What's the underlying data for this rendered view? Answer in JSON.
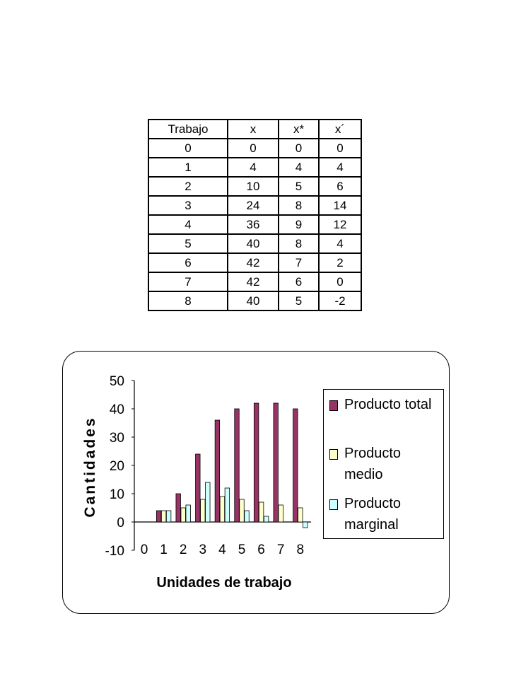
{
  "table": {
    "headers": [
      "Trabajo",
      "x",
      "x*",
      "x´"
    ],
    "rows": [
      [
        "0",
        "0",
        "0",
        "0"
      ],
      [
        "1",
        "4",
        "4",
        "4"
      ],
      [
        "2",
        "10",
        "5",
        "6"
      ],
      [
        "3",
        "24",
        "8",
        "14"
      ],
      [
        "4",
        "36",
        "9",
        "12"
      ],
      [
        "5",
        "40",
        "8",
        "4"
      ],
      [
        "6",
        "42",
        "7",
        "2"
      ],
      [
        "7",
        "42",
        "6",
        "0"
      ],
      [
        "8",
        "40",
        "5",
        "-2"
      ]
    ]
  },
  "chart_data": {
    "type": "bar",
    "categories": [
      "0",
      "1",
      "2",
      "3",
      "4",
      "5",
      "6",
      "7",
      "8"
    ],
    "series": [
      {
        "name": "Producto total",
        "values": [
          0,
          4,
          10,
          24,
          36,
          40,
          42,
          42,
          40
        ],
        "color": "#993366"
      },
      {
        "name": "Producto medio",
        "values": [
          0,
          4,
          5,
          8,
          9,
          8,
          7,
          6,
          5
        ],
        "color": "#ffffcc"
      },
      {
        "name": "Producto marginal",
        "values": [
          0,
          4,
          6,
          14,
          12,
          4,
          2,
          0,
          -2
        ],
        "color": "#ccffff"
      }
    ],
    "xlabel": "Unidades de trabajo",
    "ylabel": "Cantidades",
    "ylim": [
      -10,
      50
    ],
    "yticks": [
      "50",
      "40",
      "30",
      "20",
      "10",
      "0",
      "-10"
    ],
    "grid": false,
    "legend_position": "right"
  }
}
